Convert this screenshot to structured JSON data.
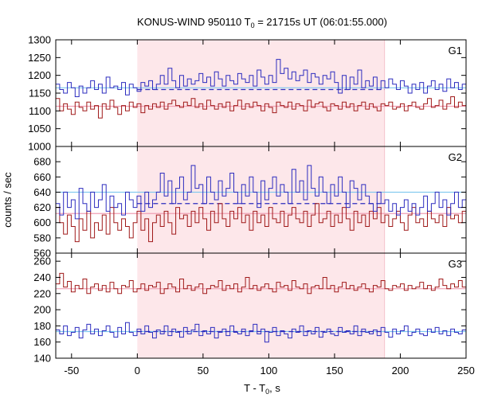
{
  "chart_data": {
    "type": "line",
    "title": "KONUS-WIND 950110 T",
    "title_sub": "0",
    "title_rest": " = 21715s UT (06:01:55.000)",
    "xlabel": "T - T",
    "xlabel_sub": "0",
    "xlabel_rest": ", s",
    "ylabel": "counts / sec",
    "xlim": [
      -62,
      250
    ],
    "x_ticks": [
      -50,
      0,
      50,
      100,
      150,
      200,
      250
    ],
    "x_tick_labels": [
      "-50",
      "0",
      "50",
      "100",
      "150",
      "200",
      "250"
    ],
    "highlight_interval": [
      0,
      188
    ],
    "colors": {
      "series_a": "#2d2dbf",
      "series_b": "#a01a1a",
      "mean_a": "#7fc8ee",
      "mean_b": "#f0a0b4",
      "highlight": "#fde7ea"
    },
    "bin_width": 2.944,
    "panels": [
      {
        "label": "G1",
        "ylim": [
          1000,
          1300
        ],
        "y_ticks": [
          1000,
          1050,
          1100,
          1150,
          1200,
          1250,
          1300
        ],
        "y_tick_labels": [
          "1000",
          "1050",
          "1100",
          "1150",
          "1200",
          "1250",
          "1300"
        ],
        "series_a_mean": 1165,
        "series_a_bg": 1160,
        "series_b_mean": 1113,
        "series_a": [
          1175,
          1160,
          1150,
          1180,
          1165,
          1140,
          1170,
          1150,
          1165,
          1185,
          1160,
          1175,
          1150,
          1195,
          1165,
          1170,
          1160,
          1180,
          1145,
          1175,
          1165,
          1155,
          1180,
          1170,
          1185,
          1160,
          1175,
          1200,
          1175,
          1220,
          1185,
          1165,
          1200,
          1170,
          1190,
          1175,
          1185,
          1205,
          1180,
          1195,
          1170,
          1210,
          1190,
          1170,
          1200,
          1185,
          1175,
          1205,
          1190,
          1180,
          1200,
          1170,
          1215,
          1195,
          1175,
          1200,
          1180,
          1245,
          1205,
          1220,
          1190,
          1210,
          1185,
          1200,
          1215,
          1180,
          1205,
          1195,
          1175,
          1200,
          1190,
          1210,
          1180,
          1150,
          1200,
          1160,
          1195,
          1175,
          1215,
          1165,
          1185,
          1170,
          1195,
          1160,
          1185,
          1165,
          1190,
          1175,
          1160,
          1185,
          1170,
          1150,
          1175,
          1160,
          1180,
          1150,
          1170,
          1185,
          1160,
          1175,
          1155,
          1190,
          1165,
          1180,
          1160,
          1175,
          1190,
          1165
        ],
        "series_b": [
          1135,
          1100,
          1120,
          1105,
          1090,
          1125,
          1110,
          1100,
          1125,
          1105,
          1115,
          1080,
          1120,
          1105,
          1130,
          1110,
          1090,
          1115,
          1100,
          1125,
          1110,
          1120,
          1095,
          1115,
          1105,
          1120,
          1110,
          1125,
          1105,
          1120,
          1130,
          1115,
          1110,
          1125,
          1115,
          1135,
          1110,
          1120,
          1105,
          1130,
          1115,
          1105,
          1120,
          1110,
          1125,
          1100,
          1115,
          1130,
          1105,
          1120,
          1110,
          1125,
          1115,
          1100,
          1120,
          1110,
          1095,
          1125,
          1115,
          1110,
          1125,
          1105,
          1120,
          1115,
          1100,
          1130,
          1110,
          1120,
          1125,
          1110,
          1100,
          1120,
          1115,
          1105,
          1125,
          1110,
          1120,
          1100,
          1115,
          1125,
          1105,
          1120,
          1110,
          1100,
          1120,
          1115,
          1125,
          1105,
          1110,
          1120,
          1100,
          1115,
          1125,
          1110,
          1105,
          1120,
          1135,
          1110,
          1115,
          1130,
          1105,
          1120,
          1140,
          1110,
          1125,
          1115
        ]
      },
      {
        "label": "G2",
        "ylim": [
          560,
          700
        ],
        "y_ticks": [
          560,
          580,
          600,
          620,
          640,
          660,
          680
        ],
        "y_tick_labels": [
          "560",
          "580",
          "600",
          "620",
          "640",
          "660",
          "680"
        ],
        "series_a_mean": 640,
        "series_a_bg": 625,
        "series_b_mean": 612,
        "series_a": [
          625,
          610,
          640,
          620,
          630,
          605,
          645,
          625,
          615,
          640,
          620,
          630,
          650,
          615,
          635,
          620,
          625,
          610,
          640,
          630,
          620,
          635,
          615,
          640,
          620,
          630,
          640,
          665,
          635,
          655,
          625,
          645,
          660,
          630,
          640,
          675,
          645,
          650,
          625,
          660,
          640,
          630,
          655,
          635,
          645,
          665,
          640,
          625,
          650,
          635,
          660,
          640,
          620,
          655,
          630,
          645,
          660,
          635,
          650,
          640,
          625,
          670,
          640,
          655,
          630,
          675,
          645,
          635,
          660,
          640,
          625,
          650,
          635,
          660,
          640,
          620,
          655,
          645,
          630,
          650,
          635,
          625,
          615,
          640,
          625,
          630,
          615,
          625,
          610,
          620,
          630,
          615,
          625,
          610,
          620,
          635,
          615,
          625,
          640,
          620,
          630,
          610,
          625,
          640,
          620,
          630
        ],
        "series_b": [
          620,
          600,
          585,
          610,
          595,
          575,
          605,
          590,
          615,
          580,
          600,
          590,
          610,
          585,
          620,
          600,
          590,
          605,
          595,
          580,
          600,
          615,
          590,
          605,
          575,
          600,
          610,
          595,
          615,
          600,
          585,
          620,
          605,
          610,
          595,
          615,
          600,
          620,
          605,
          590,
          615,
          600,
          625,
          605,
          595,
          615,
          605,
          620,
          600,
          610,
          590,
          615,
          600,
          610,
          595,
          620,
          605,
          600,
          615,
          595,
          610,
          620,
          605,
          600,
          615,
          595,
          610,
          625,
          600,
          605,
          615,
          595,
          610,
          600,
          620,
          605,
          590,
          615,
          600,
          610,
          595,
          615,
          605,
          620,
          600,
          610,
          595,
          605,
          615,
          600,
          590,
          610,
          620,
          600,
          605,
          595,
          615,
          605,
          600,
          610,
          595,
          620,
          605,
          610,
          600,
          615
        ]
      },
      {
        "label": "G3",
        "ylim": [
          140,
          270
        ],
        "y_ticks": [
          140,
          160,
          180,
          200,
          220,
          240,
          260
        ],
        "y_tick_labels": [
          "140",
          "160",
          "180",
          "200",
          "220",
          "240",
          "260"
        ],
        "series_a_mean": 173,
        "series_a_bg": 173,
        "series_b_mean": 226,
        "series_a": [
          175,
          170,
          180,
          168,
          172,
          178,
          165,
          175,
          182,
          170,
          176,
          168,
          174,
          180,
          172,
          166,
          178,
          170,
          184,
          172,
          168,
          176,
          170,
          180,
          172,
          165,
          175,
          170,
          180,
          168,
          176,
          172,
          166,
          178,
          170,
          175,
          182,
          168,
          174,
          170,
          178,
          165,
          172,
          176,
          168,
          180,
          172,
          170,
          176,
          168,
          174,
          182,
          170,
          176,
          160,
          172,
          178,
          168,
          174,
          170,
          165,
          176,
          172,
          180,
          168,
          174,
          170,
          178,
          166,
          172,
          176,
          170,
          168,
          178,
          172,
          174,
          170,
          180,
          168,
          176,
          172,
          170,
          175,
          168,
          178,
          172,
          166,
          176,
          170,
          174,
          180,
          168,
          172,
          176,
          170,
          168,
          176,
          172,
          178,
          170,
          174,
          168,
          176,
          172,
          170,
          175
        ],
        "series_b": [
          232,
          245,
          228,
          235,
          222,
          230,
          226,
          238,
          220,
          228,
          232,
          224,
          230,
          222,
          234,
          226,
          220,
          230,
          228,
          236,
          222,
          226,
          232,
          224,
          230,
          228,
          234,
          220,
          226,
          232,
          228,
          222,
          238,
          226,
          230,
          224,
          228,
          232,
          220,
          226,
          230,
          228,
          236,
          224,
          230,
          226,
          232,
          222,
          228,
          240,
          226,
          230,
          224,
          228,
          232,
          226,
          222,
          234,
          228,
          230,
          224,
          236,
          228,
          226,
          232,
          220,
          228,
          230,
          226,
          240,
          226,
          230,
          222,
          228,
          234,
          226,
          230,
          224,
          228,
          232,
          226,
          222,
          230,
          228,
          236,
          226,
          224,
          230,
          228,
          232,
          224,
          230,
          226,
          228,
          234,
          226,
          230,
          224,
          228,
          238,
          230,
          226,
          232,
          228,
          236,
          228
        ]
      }
    ]
  }
}
